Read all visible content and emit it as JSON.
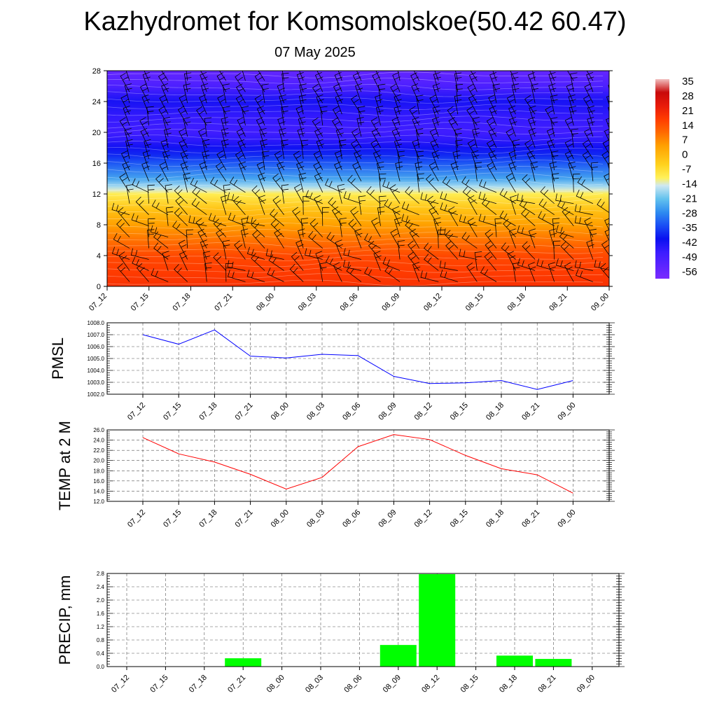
{
  "title": "Kazhydromet for Komsomolskoe(50.42 60.47)",
  "subtitle": "07 May 2025",
  "time_labels": [
    "07_12",
    "07_15",
    "07_18",
    "07_21",
    "08_00",
    "08_03",
    "08_06",
    "08_09",
    "08_12",
    "08_15",
    "08_18",
    "08_21",
    "09_00"
  ],
  "chart_data": [
    {
      "type": "heatmap",
      "name": "temperature_cross_section",
      "ylim": [
        0,
        28
      ],
      "yticks": [
        "0",
        "4",
        "8",
        "12",
        "16",
        "20",
        "24",
        "28"
      ],
      "colorbar_ticks": [
        "35",
        "28",
        "21",
        "14",
        "7",
        "0",
        "-7",
        "-14",
        "-21",
        "-28",
        "-35",
        "-42",
        "-49",
        "-56"
      ],
      "colorbar_range": [
        -63,
        42
      ],
      "colormap": [
        {
          "v": -63,
          "c": "#7a2bff"
        },
        {
          "v": -49,
          "c": "#3b1cff"
        },
        {
          "v": -42,
          "c": "#0a10f0"
        },
        {
          "v": -35,
          "c": "#1a4ef5"
        },
        {
          "v": -28,
          "c": "#2e8cf0"
        },
        {
          "v": -21,
          "c": "#63c2ee"
        },
        {
          "v": -14,
          "c": "#cfe8f2"
        },
        {
          "v": -10,
          "c": "#fff15a"
        },
        {
          "v": -3,
          "c": "#ffd21e"
        },
        {
          "v": 7,
          "c": "#ffa000"
        },
        {
          "v": 14,
          "c": "#ff6a00"
        },
        {
          "v": 21,
          "c": "#ff3c00"
        },
        {
          "v": 28,
          "c": "#e81a0a"
        },
        {
          "v": 35,
          "c": "#c80a0a"
        },
        {
          "v": 42,
          "c": "#f2c0c0"
        }
      ],
      "profile_levels": [
        0,
        2,
        4,
        6,
        8,
        10,
        12,
        12.5,
        13,
        14,
        16,
        17,
        18,
        19,
        20,
        22,
        24,
        26,
        28
      ],
      "profile_values": [
        23,
        21,
        19,
        13,
        7,
        0,
        -9,
        -13,
        -17,
        -25,
        -34,
        -39,
        -43,
        -47,
        -50,
        -48,
        -44,
        -53,
        -58
      ],
      "colorbar": true,
      "wind_barbs": true
    },
    {
      "type": "line",
      "name": "pmsl",
      "ylabel": "PMSL",
      "x": [
        "07_12",
        "07_15",
        "07_18",
        "07_21",
        "08_00",
        "08_03",
        "08_06",
        "08_09",
        "08_12",
        "08_15",
        "08_18",
        "08_21",
        "09_00"
      ],
      "values": [
        1007.0,
        1006.2,
        1007.4,
        1005.2,
        1005.05,
        1005.35,
        1005.25,
        1003.5,
        1002.9,
        1002.95,
        1003.15,
        1002.4,
        1003.15
      ],
      "ylim": [
        1002.0,
        1008.0
      ],
      "yticks": [
        "1002.0",
        "1003.0",
        "1004.0",
        "1005.0",
        "1006.0",
        "1007.0",
        "1008.0"
      ],
      "color": "#0000ff",
      "grid": true
    },
    {
      "type": "line",
      "name": "temp_2m",
      "ylabel": "TEMP at 2 M",
      "x": [
        "07_12",
        "07_15",
        "07_18",
        "07_21",
        "08_00",
        "08_03",
        "08_06",
        "08_09",
        "08_12",
        "08_15",
        "08_18",
        "08_21",
        "09_00"
      ],
      "values": [
        24.5,
        21.3,
        19.7,
        17.3,
        14.4,
        16.7,
        22.7,
        25.1,
        24.1,
        21.0,
        18.4,
        17.2,
        13.6
      ],
      "ylim": [
        12.0,
        26.0
      ],
      "yticks": [
        "12.0",
        "14.0",
        "16.0",
        "18.0",
        "20.0",
        "22.0",
        "24.0",
        "26.0"
      ],
      "color": "#ff0000",
      "grid": true
    },
    {
      "type": "bar",
      "name": "precip",
      "ylabel": "PRECIP, mm",
      "categories": [
        "07_12",
        "07_15",
        "07_18",
        "07_21",
        "08_00",
        "08_03",
        "08_06",
        "08_09",
        "08_12",
        "08_15",
        "08_18",
        "08_21",
        "09_00"
      ],
      "values": [
        0,
        0,
        0,
        0.25,
        0,
        0,
        0,
        0.65,
        2.78,
        0,
        0.33,
        0.23,
        0
      ],
      "ylim": [
        0.0,
        2.8
      ],
      "yticks": [
        "0.0",
        "0.4",
        "0.8",
        "1.2",
        "1.6",
        "2.0",
        "2.4",
        "2.8"
      ],
      "color": "#00ff00",
      "grid": true
    }
  ]
}
